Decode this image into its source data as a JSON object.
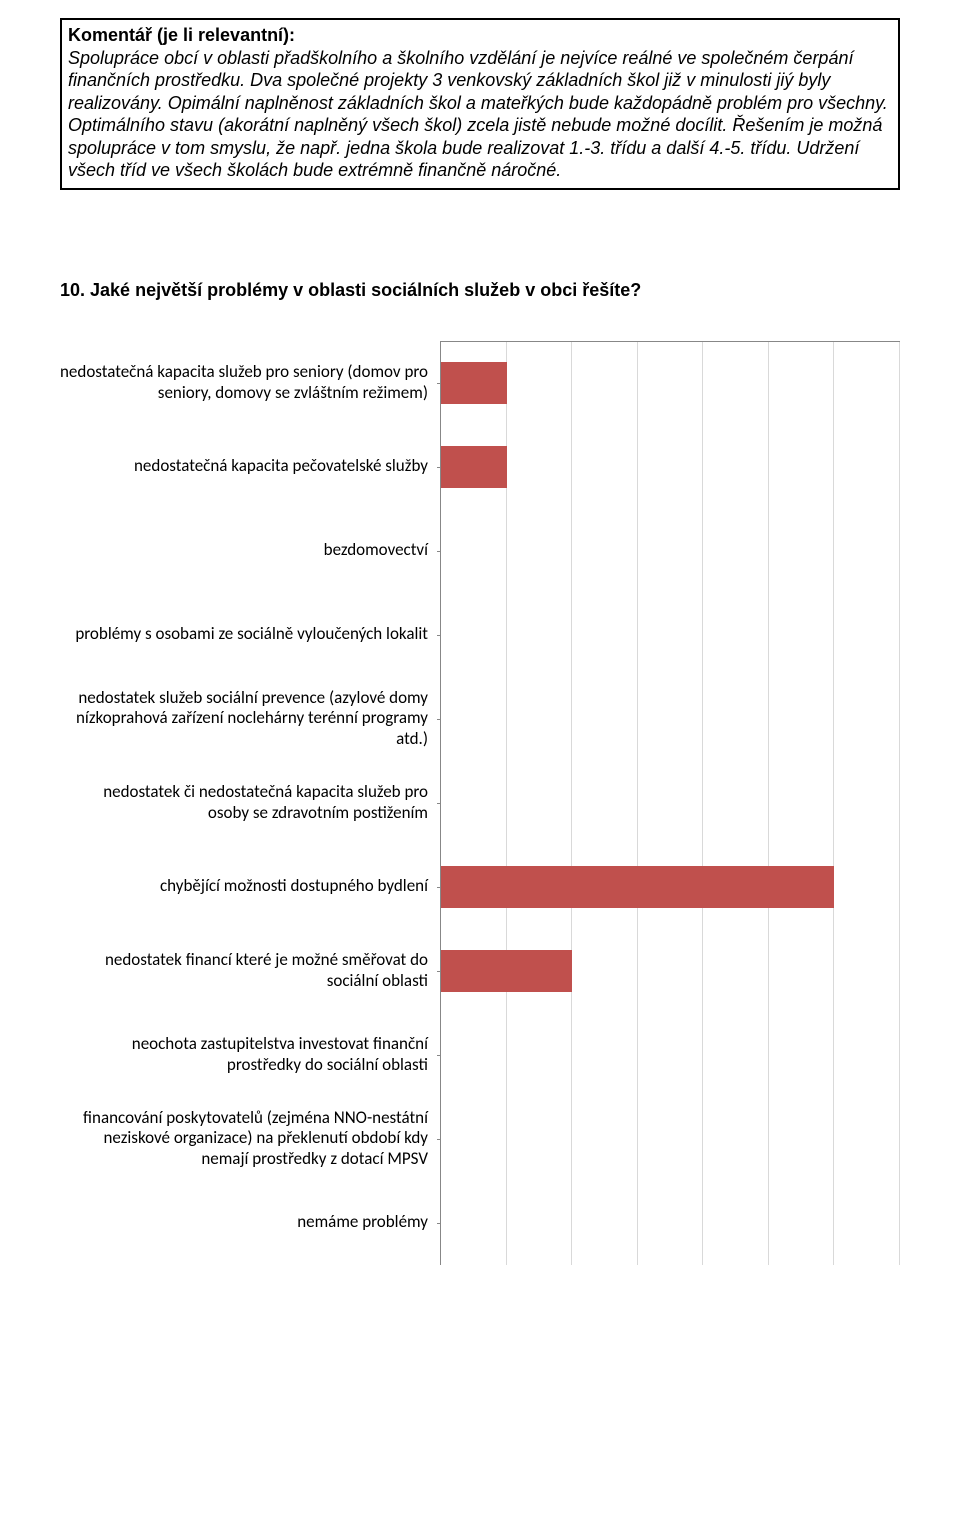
{
  "comment": {
    "title": "Komentář (je li relevantní):",
    "body": "Spolupráce obcí v oblasti přadškolního a školního vzdělání je nejvíce reálné ve společném čerpání finančních prostředku. Dva společné projekty 3 venkovský základních škol již v minulosti jiý byly realizovány. Opimální naplněnost základních škol a mateřkých bude každopádně problém pro všechny. Optimálního stavu (akorátní naplněný všech škol) zcela jistě nebude možné docílit. Řešením je možná spolupráce v tom smyslu, že např. jedna škola bude realizovat 1.-3. třídu a další 4.-5. třídu. Udržení všech tříd ve všech školách bude extrémně finančně náročné."
  },
  "question": "10. Jaké největší problémy v oblasti sociálních služeb v obci řešíte?",
  "chart": {
    "type": "bar-horizontal",
    "xlim": [
      0,
      7
    ],
    "xtick_step": 1,
    "bar_color": "#c0504d",
    "grid_color": "#d9d9d9",
    "axis_color": "#878787",
    "label_fontsize": 17,
    "items": [
      {
        "label": "nedostatečná kapacita služeb pro seniory (domov pro seniory,  domovy se zvláštním režimem)",
        "value": 1
      },
      {
        "label": "nedostatečná kapacita pečovatelské služby",
        "value": 1
      },
      {
        "label": "bezdomovectví",
        "value": 0
      },
      {
        "label": "problémy s osobami ze sociálně vyloučených lokalit",
        "value": 0
      },
      {
        "label": "nedostatek služeb sociální prevence (azylové domy nízkoprahová zařízení noclehárny terénní programy atd.)",
        "value": 0
      },
      {
        "label": "nedostatek či nedostatečná kapacita služeb pro osoby se zdravotním postižením",
        "value": 0
      },
      {
        "label": "chybějící možnosti dostupného bydlení",
        "value": 6
      },
      {
        "label": "nedostatek financí které je možné směřovat do sociální oblasti",
        "value": 2
      },
      {
        "label": "neochota zastupitelstva investovat finanční prostředky do sociální oblasti",
        "value": 0
      },
      {
        "label": "financování poskytovatelů (zejména NNO-nestátní neziskové organizace) na překlenutí období  kdy nemají prostředky z dotací MPSV",
        "value": 0
      },
      {
        "label": "nemáme problémy",
        "value": 0
      }
    ]
  }
}
